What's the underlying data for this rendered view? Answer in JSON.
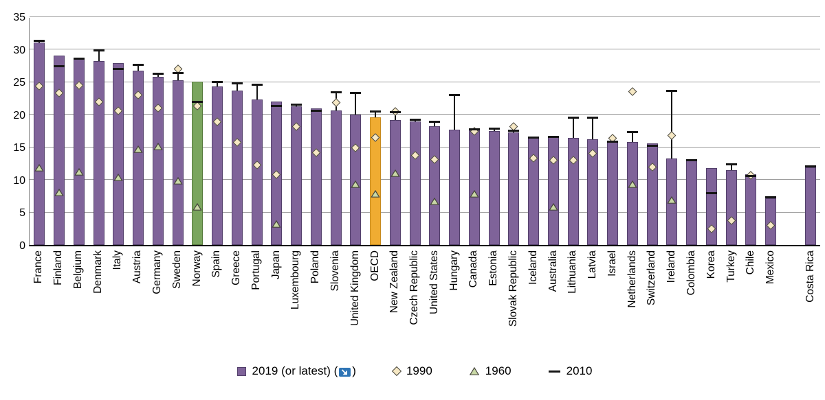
{
  "y_axis": {
    "ticks": [
      0,
      5,
      10,
      15,
      20,
      25,
      30,
      35
    ],
    "max": 35
  },
  "legend": {
    "y2019_prefix": "2019 (or latest) (",
    "y2019_suffix": ")",
    "y1990": "1990",
    "y1960": "1960",
    "y2010": "2010"
  },
  "colors": {
    "bar_default": "#7f6399",
    "bar_default_border": "#53406b",
    "bar_highlight": "#7aa55e",
    "bar_highlight_border": "#55793c",
    "bar_oecd": "#f0ac32",
    "bar_oecd_border": "#c68a1e",
    "diamond_fill": "#f6e8c4",
    "triangle_fill": "#c9d8a6",
    "marker_stroke": "#45443c",
    "dash": "#151515",
    "statlink_blue": "#2e74b5"
  },
  "chart_data": {
    "type": "bar",
    "title": "",
    "ylabel": "",
    "xlabel": "",
    "ylim": [
      0,
      35
    ],
    "grid": true,
    "legend_position": "bottom",
    "series_names": [
      "2019 (or latest)",
      "2010",
      "1990",
      "1960"
    ],
    "highlighted_country": "Norway",
    "countries": [
      {
        "name": "France",
        "v2019": 31.0,
        "v2010": 31.3,
        "v1990": 24.3,
        "v1960": 11.8
      },
      {
        "name": "Finland",
        "v2019": 29.0,
        "v2010": 27.4,
        "v1990": 23.3,
        "v1960": 8.0
      },
      {
        "name": "Belgium",
        "v2019": 28.7,
        "v2010": 28.5,
        "v1990": 24.4,
        "v1960": 11.2
      },
      {
        "name": "Denmark",
        "v2019": 28.2,
        "v2010": 29.8,
        "v1990": 21.9,
        "v1960": null
      },
      {
        "name": "Italy",
        "v2019": 27.9,
        "v2010": 27.0,
        "v1990": 20.5,
        "v1960": 10.4
      },
      {
        "name": "Austria",
        "v2019": 26.7,
        "v2010": 27.6,
        "v1990": 23.0,
        "v1960": 14.7
      },
      {
        "name": "Germany",
        "v2019": 25.8,
        "v2010": 26.2,
        "v1990": 21.0,
        "v1960": 15.1
      },
      {
        "name": "Sweden",
        "v2019": 25.2,
        "v2010": 26.3,
        "v1990": 27.0,
        "v1960": 9.8
      },
      {
        "name": "Norway",
        "v2019": 25.0,
        "v2010": 21.9,
        "v1990": 21.3,
        "v1960": 5.8,
        "color": "green"
      },
      {
        "name": "Spain",
        "v2019": 24.3,
        "v2010": 25.0,
        "v1990": 18.9,
        "v1960": null
      },
      {
        "name": "Greece",
        "v2019": 23.7,
        "v2010": 24.8,
        "v1990": 15.7,
        "v1960": null
      },
      {
        "name": "Portugal",
        "v2019": 22.3,
        "v2010": 24.5,
        "v1990": 12.2,
        "v1960": null
      },
      {
        "name": "Japan",
        "v2019": 22.0,
        "v2010": 21.3,
        "v1990": 10.8,
        "v1960": 3.2
      },
      {
        "name": "Luxembourg",
        "v2019": 21.2,
        "v2010": 21.5,
        "v1990": 18.1,
        "v1960": null
      },
      {
        "name": "Poland",
        "v2019": 20.9,
        "v2010": 20.6,
        "v1990": 14.1,
        "v1960": null
      },
      {
        "name": "Slovenia",
        "v2019": 20.6,
        "v2010": 23.4,
        "v1990": 21.8,
        "v1960": null
      },
      {
        "name": "United Kingdom",
        "v2019": 20.0,
        "v2010": 23.3,
        "v1990": 14.9,
        "v1960": 9.3
      },
      {
        "name": "OECD",
        "v2019": 19.6,
        "v2010": 20.4,
        "v1990": 16.5,
        "v1960": 7.8,
        "color": "yellow"
      },
      {
        "name": "New Zealand",
        "v2019": 19.1,
        "v2010": 20.3,
        "v1990": 20.4,
        "v1960": 11.0
      },
      {
        "name": "Czech Republic",
        "v2019": 18.9,
        "v2010": 19.2,
        "v1990": 13.7,
        "v1960": null
      },
      {
        "name": "United States",
        "v2019": 18.2,
        "v2010": 18.9,
        "v1990": 13.1,
        "v1960": 6.7
      },
      {
        "name": "Hungary",
        "v2019": 17.7,
        "v2010": 23.0,
        "v1990": null,
        "v1960": null
      },
      {
        "name": "Canada",
        "v2019": 17.6,
        "v2010": 17.7,
        "v1990": 17.4,
        "v1960": 7.8
      },
      {
        "name": "Estonia",
        "v2019": 17.4,
        "v2010": 17.8,
        "v1990": null,
        "v1960": null
      },
      {
        "name": "Slovak Republic",
        "v2019": 17.2,
        "v2010": 17.5,
        "v1990": 18.1,
        "v1960": null
      },
      {
        "name": "Iceland",
        "v2019": 16.6,
        "v2010": 16.4,
        "v1990": 13.3,
        "v1960": null
      },
      {
        "name": "Australia",
        "v2019": 16.5,
        "v2010": 16.6,
        "v1990": 13.0,
        "v1960": 5.8
      },
      {
        "name": "Lithuania",
        "v2019": 16.4,
        "v2010": 19.5,
        "v1990": 13.0,
        "v1960": null
      },
      {
        "name": "Latvia",
        "v2019": 16.2,
        "v2010": 19.5,
        "v1990": 14.0,
        "v1960": null
      },
      {
        "name": "Israel",
        "v2019": 16.0,
        "v2010": 15.8,
        "v1990": 16.3,
        "v1960": null
      },
      {
        "name": "Netherlands",
        "v2019": 15.8,
        "v2010": 17.3,
        "v1990": 23.5,
        "v1960": 9.3
      },
      {
        "name": "Switzerland",
        "v2019": 15.6,
        "v2010": 15.2,
        "v1990": 11.9,
        "v1960": null
      },
      {
        "name": "Ireland",
        "v2019": 13.2,
        "v2010": 23.6,
        "v1990": 16.8,
        "v1960": 6.9
      },
      {
        "name": "Colombia",
        "v2019": 12.9,
        "v2010": 13.0,
        "v1990": null,
        "v1960": null
      },
      {
        "name": "Korea",
        "v2019": 11.8,
        "v2010": 7.9,
        "v1990": 2.5,
        "v1960": null
      },
      {
        "name": "Turkey",
        "v2019": 11.5,
        "v2010": 12.3,
        "v1990": 3.7,
        "v1960": null
      },
      {
        "name": "Chile",
        "v2019": 10.8,
        "v2010": 10.6,
        "v1990": 10.7,
        "v1960": null
      },
      {
        "name": "Mexico",
        "v2019": 7.2,
        "v2010": 7.3,
        "v1990": 3.0,
        "v1960": null
      },
      {
        "name": "",
        "spacer": true
      },
      {
        "name": "Costa Rica",
        "v2019": 11.9,
        "v2010": 12.0,
        "v1990": null,
        "v1960": null
      }
    ]
  }
}
